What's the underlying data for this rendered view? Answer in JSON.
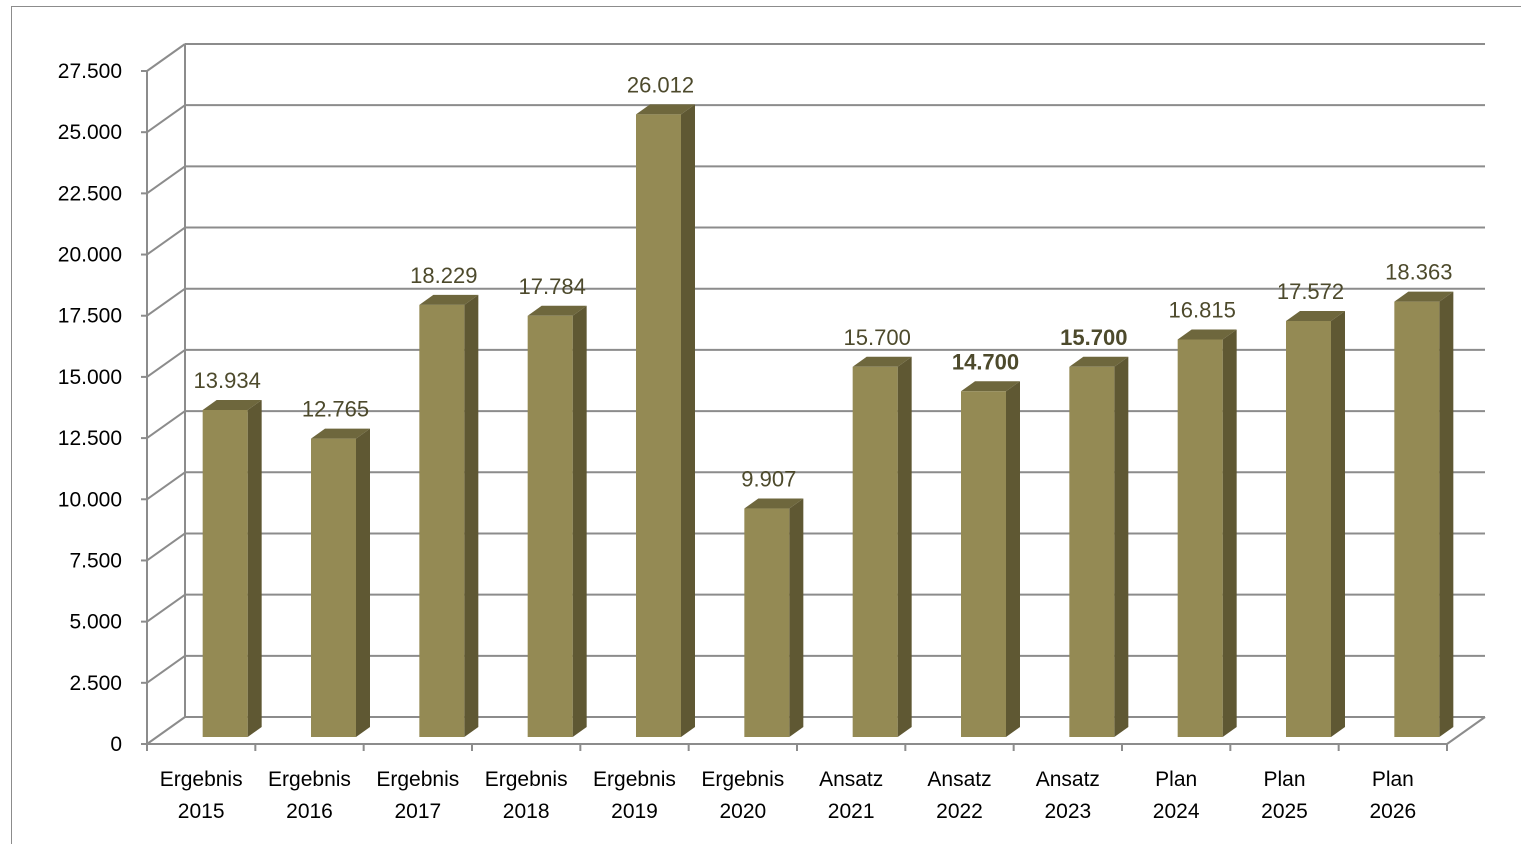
{
  "chart_data": {
    "type": "bar",
    "style": "3d-column",
    "categories": [
      [
        "Ergebnis",
        "2015"
      ],
      [
        "Ergebnis",
        "2016"
      ],
      [
        "Ergebnis",
        "2017"
      ],
      [
        "Ergebnis",
        "2018"
      ],
      [
        "Ergebnis",
        "2019"
      ],
      [
        "Ergebnis",
        "2020"
      ],
      [
        "Ansatz",
        "2021"
      ],
      [
        "Ansatz",
        "2022"
      ],
      [
        "Ansatz",
        "2023"
      ],
      [
        "Plan",
        "2024"
      ],
      [
        "Plan",
        "2025"
      ],
      [
        "Plan",
        "2026"
      ]
    ],
    "values": [
      13934,
      12765,
      18229,
      17784,
      26012,
      9907,
      15700,
      14700,
      15700,
      16815,
      17572,
      18363
    ],
    "value_labels": [
      "13.934",
      "12.765",
      "18.229",
      "17.784",
      "26.012",
      "9.907",
      "15.700",
      "14.700",
      "15.700",
      "16.815",
      "17.572",
      "18.363"
    ],
    "bold_labels": [
      false,
      false,
      false,
      false,
      false,
      false,
      false,
      true,
      true,
      false,
      false,
      false
    ],
    "ylim": [
      0,
      27500
    ],
    "y_ticks": [
      0,
      2500,
      5000,
      7500,
      10000,
      12500,
      15000,
      17500,
      20000,
      22500,
      25000,
      27500
    ],
    "y_tick_labels": [
      "0",
      "2.500",
      "5.000",
      "7.500",
      "10.000",
      "12.500",
      "15.000",
      "17.500",
      "20.000",
      "22.500",
      "25.000",
      "27.500"
    ],
    "title": "",
    "xlabel": "",
    "ylabel": "",
    "grid": true,
    "legend": "none",
    "colors": {
      "bar_front": "#948a54",
      "bar_side": "#5f5833",
      "bar_top": "#6e673d",
      "label_text": "#4d4a2c",
      "grid": "#8c8c8c"
    }
  }
}
